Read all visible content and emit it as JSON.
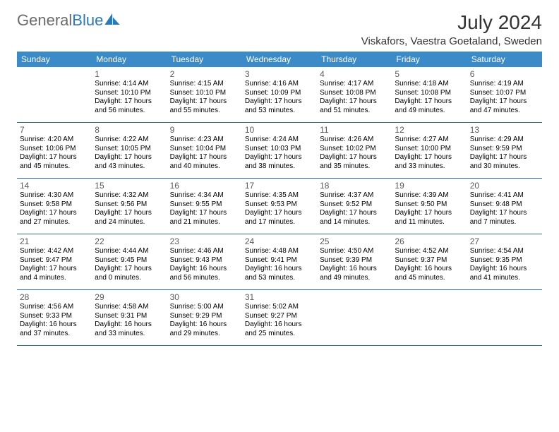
{
  "brand": {
    "part1": "General",
    "part2": "Blue"
  },
  "title": "July 2024",
  "location": "Viskafors, Vaestra Goetaland, Sweden",
  "colors": {
    "header_bg": "#3b8bc9",
    "header_text": "#ffffff",
    "week_divider": "#2a6da3",
    "body_text": "#000000",
    "daynum_text": "#5a5a5a",
    "brand_gray": "#6b6b6b",
    "brand_blue": "#2a7ab9",
    "page_bg": "#ffffff"
  },
  "day_names": [
    "Sunday",
    "Monday",
    "Tuesday",
    "Wednesday",
    "Thursday",
    "Friday",
    "Saturday"
  ],
  "weeks": [
    [
      {
        "num": "",
        "lines": []
      },
      {
        "num": "1",
        "lines": [
          "Sunrise: 4:14 AM",
          "Sunset: 10:10 PM",
          "Daylight: 17 hours",
          "and 56 minutes."
        ]
      },
      {
        "num": "2",
        "lines": [
          "Sunrise: 4:15 AM",
          "Sunset: 10:10 PM",
          "Daylight: 17 hours",
          "and 55 minutes."
        ]
      },
      {
        "num": "3",
        "lines": [
          "Sunrise: 4:16 AM",
          "Sunset: 10:09 PM",
          "Daylight: 17 hours",
          "and 53 minutes."
        ]
      },
      {
        "num": "4",
        "lines": [
          "Sunrise: 4:17 AM",
          "Sunset: 10:08 PM",
          "Daylight: 17 hours",
          "and 51 minutes."
        ]
      },
      {
        "num": "5",
        "lines": [
          "Sunrise: 4:18 AM",
          "Sunset: 10:08 PM",
          "Daylight: 17 hours",
          "and 49 minutes."
        ]
      },
      {
        "num": "6",
        "lines": [
          "Sunrise: 4:19 AM",
          "Sunset: 10:07 PM",
          "Daylight: 17 hours",
          "and 47 minutes."
        ]
      }
    ],
    [
      {
        "num": "7",
        "lines": [
          "Sunrise: 4:20 AM",
          "Sunset: 10:06 PM",
          "Daylight: 17 hours",
          "and 45 minutes."
        ]
      },
      {
        "num": "8",
        "lines": [
          "Sunrise: 4:22 AM",
          "Sunset: 10:05 PM",
          "Daylight: 17 hours",
          "and 43 minutes."
        ]
      },
      {
        "num": "9",
        "lines": [
          "Sunrise: 4:23 AM",
          "Sunset: 10:04 PM",
          "Daylight: 17 hours",
          "and 40 minutes."
        ]
      },
      {
        "num": "10",
        "lines": [
          "Sunrise: 4:24 AM",
          "Sunset: 10:03 PM",
          "Daylight: 17 hours",
          "and 38 minutes."
        ]
      },
      {
        "num": "11",
        "lines": [
          "Sunrise: 4:26 AM",
          "Sunset: 10:02 PM",
          "Daylight: 17 hours",
          "and 35 minutes."
        ]
      },
      {
        "num": "12",
        "lines": [
          "Sunrise: 4:27 AM",
          "Sunset: 10:00 PM",
          "Daylight: 17 hours",
          "and 33 minutes."
        ]
      },
      {
        "num": "13",
        "lines": [
          "Sunrise: 4:29 AM",
          "Sunset: 9:59 PM",
          "Daylight: 17 hours",
          "and 30 minutes."
        ]
      }
    ],
    [
      {
        "num": "14",
        "lines": [
          "Sunrise: 4:30 AM",
          "Sunset: 9:58 PM",
          "Daylight: 17 hours",
          "and 27 minutes."
        ]
      },
      {
        "num": "15",
        "lines": [
          "Sunrise: 4:32 AM",
          "Sunset: 9:56 PM",
          "Daylight: 17 hours",
          "and 24 minutes."
        ]
      },
      {
        "num": "16",
        "lines": [
          "Sunrise: 4:34 AM",
          "Sunset: 9:55 PM",
          "Daylight: 17 hours",
          "and 21 minutes."
        ]
      },
      {
        "num": "17",
        "lines": [
          "Sunrise: 4:35 AM",
          "Sunset: 9:53 PM",
          "Daylight: 17 hours",
          "and 17 minutes."
        ]
      },
      {
        "num": "18",
        "lines": [
          "Sunrise: 4:37 AM",
          "Sunset: 9:52 PM",
          "Daylight: 17 hours",
          "and 14 minutes."
        ]
      },
      {
        "num": "19",
        "lines": [
          "Sunrise: 4:39 AM",
          "Sunset: 9:50 PM",
          "Daylight: 17 hours",
          "and 11 minutes."
        ]
      },
      {
        "num": "20",
        "lines": [
          "Sunrise: 4:41 AM",
          "Sunset: 9:48 PM",
          "Daylight: 17 hours",
          "and 7 minutes."
        ]
      }
    ],
    [
      {
        "num": "21",
        "lines": [
          "Sunrise: 4:42 AM",
          "Sunset: 9:47 PM",
          "Daylight: 17 hours",
          "and 4 minutes."
        ]
      },
      {
        "num": "22",
        "lines": [
          "Sunrise: 4:44 AM",
          "Sunset: 9:45 PM",
          "Daylight: 17 hours",
          "and 0 minutes."
        ]
      },
      {
        "num": "23",
        "lines": [
          "Sunrise: 4:46 AM",
          "Sunset: 9:43 PM",
          "Daylight: 16 hours",
          "and 56 minutes."
        ]
      },
      {
        "num": "24",
        "lines": [
          "Sunrise: 4:48 AM",
          "Sunset: 9:41 PM",
          "Daylight: 16 hours",
          "and 53 minutes."
        ]
      },
      {
        "num": "25",
        "lines": [
          "Sunrise: 4:50 AM",
          "Sunset: 9:39 PM",
          "Daylight: 16 hours",
          "and 49 minutes."
        ]
      },
      {
        "num": "26",
        "lines": [
          "Sunrise: 4:52 AM",
          "Sunset: 9:37 PM",
          "Daylight: 16 hours",
          "and 45 minutes."
        ]
      },
      {
        "num": "27",
        "lines": [
          "Sunrise: 4:54 AM",
          "Sunset: 9:35 PM",
          "Daylight: 16 hours",
          "and 41 minutes."
        ]
      }
    ],
    [
      {
        "num": "28",
        "lines": [
          "Sunrise: 4:56 AM",
          "Sunset: 9:33 PM",
          "Daylight: 16 hours",
          "and 37 minutes."
        ]
      },
      {
        "num": "29",
        "lines": [
          "Sunrise: 4:58 AM",
          "Sunset: 9:31 PM",
          "Daylight: 16 hours",
          "and 33 minutes."
        ]
      },
      {
        "num": "30",
        "lines": [
          "Sunrise: 5:00 AM",
          "Sunset: 9:29 PM",
          "Daylight: 16 hours",
          "and 29 minutes."
        ]
      },
      {
        "num": "31",
        "lines": [
          "Sunrise: 5:02 AM",
          "Sunset: 9:27 PM",
          "Daylight: 16 hours",
          "and 25 minutes."
        ]
      },
      {
        "num": "",
        "lines": []
      },
      {
        "num": "",
        "lines": []
      },
      {
        "num": "",
        "lines": []
      }
    ]
  ]
}
